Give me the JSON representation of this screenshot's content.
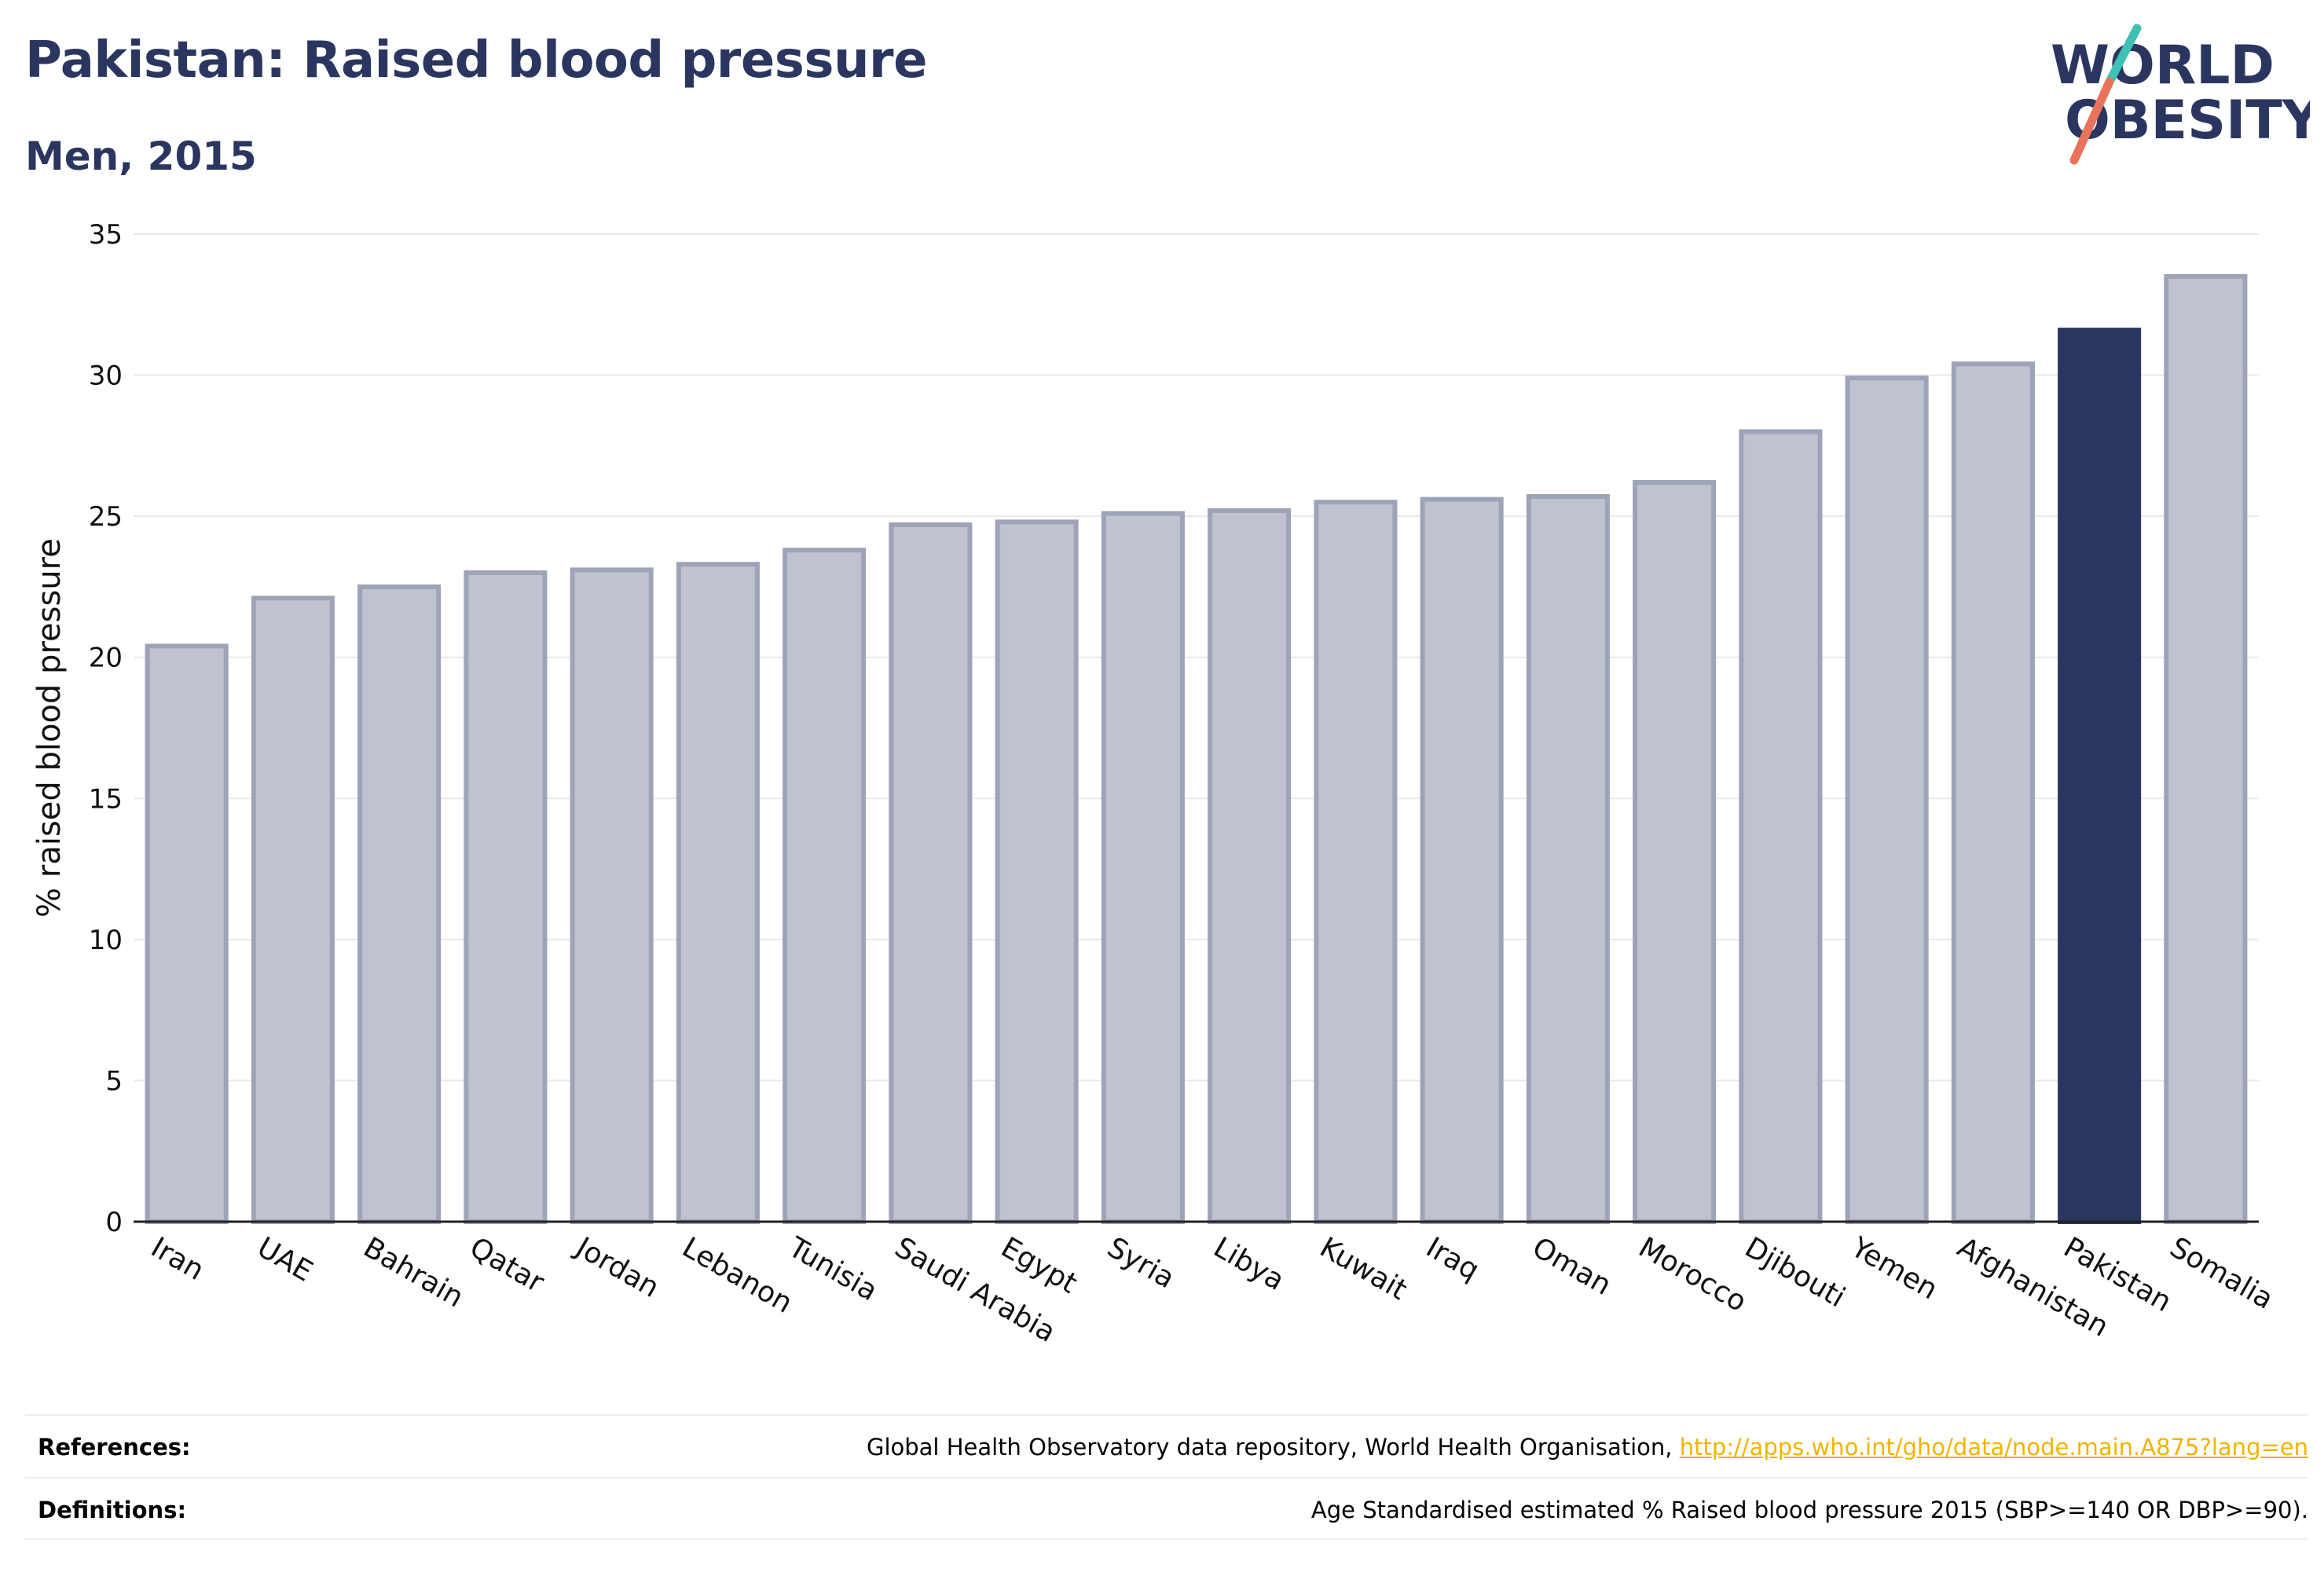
{
  "header": {
    "title": "Pakistan: Raised blood pressure",
    "subtitle": "Men, 2015"
  },
  "logo": {
    "line1": "WORLD",
    "line2": "OBESITY",
    "slash_colors": [
      "#3fc1b4",
      "#e8735a"
    ],
    "text_color": "#2b3660"
  },
  "chart_data": {
    "type": "bar",
    "ylabel": "% raised blood pressure",
    "ylim": [
      0,
      35
    ],
    "yticks": [
      0,
      5,
      10,
      15,
      20,
      25,
      30,
      35
    ],
    "grid": true,
    "highlight": "Pakistan",
    "colors": {
      "bar": "#bfc2cf",
      "bar_edge": "#9ea3b8",
      "highlight": "#2b3660"
    },
    "categories": [
      "Iran",
      "UAE",
      "Bahrain",
      "Qatar",
      "Jordan",
      "Lebanon",
      "Tunisia",
      "Saudi Arabia",
      "Egypt",
      "Syria",
      "Libya",
      "Kuwait",
      "Iraq",
      "Oman",
      "Morocco",
      "Djibouti",
      "Yemen",
      "Afghanistan",
      "Pakistan",
      "Somalia"
    ],
    "values": [
      20.4,
      22.1,
      22.5,
      23.0,
      23.1,
      23.3,
      23.8,
      24.7,
      24.8,
      25.1,
      25.2,
      25.5,
      25.6,
      25.7,
      26.2,
      28.0,
      29.9,
      30.4,
      31.6,
      33.5
    ]
  },
  "footer": {
    "references_label": "References:",
    "references_text": "Global Health Observatory data repository, World Health Organisation, ",
    "references_link": "http://apps.who.int/gho/data/node.main.A875?lang=en",
    "definitions_label": "Definitions:",
    "definitions_text": "Age Standardised estimated % Raised blood pressure 2015 (SBP>=140 OR DBP>=90)."
  }
}
